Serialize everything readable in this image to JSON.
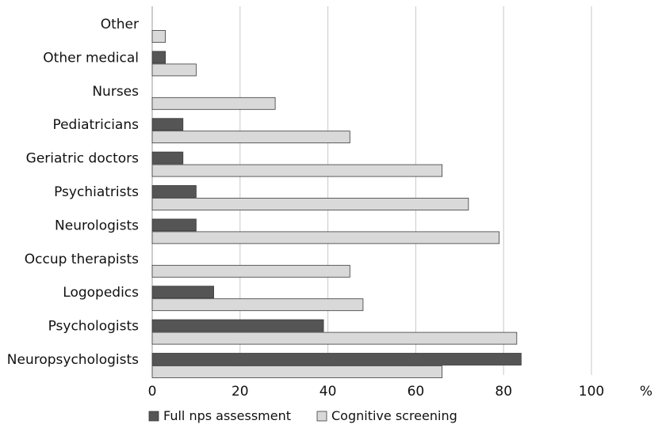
{
  "chart_data": {
    "type": "bar",
    "orientation": "horizontal",
    "categories": [
      "Other",
      "Other medical",
      "Nurses",
      "Pediatricians",
      "Geriatric doctors",
      "Psychiatrists",
      "Neurologists",
      "Occup therapists",
      "Logopedics",
      "Psychologists",
      "Neuropsychologists"
    ],
    "series": [
      {
        "name": "Full nps assessment",
        "color": "#555555",
        "values": [
          0,
          3,
          0,
          7,
          7,
          10,
          10,
          0,
          14,
          39,
          84
        ]
      },
      {
        "name": "Cognitive screening",
        "color": "#d9d9d9",
        "values": [
          3,
          10,
          28,
          45,
          66,
          72,
          79,
          45,
          48,
          83,
          66
        ]
      }
    ],
    "xlim": [
      0,
      100
    ],
    "xticks": [
      "0",
      "20",
      "40",
      "60",
      "80",
      "100"
    ],
    "unit": "%",
    "grid": true,
    "legend_position": "bottom"
  }
}
